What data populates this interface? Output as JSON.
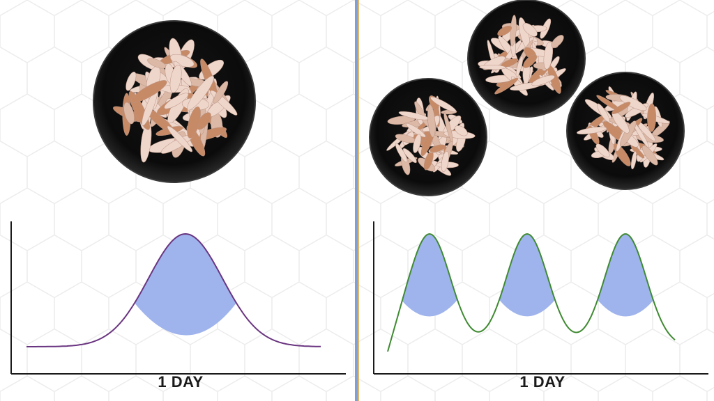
{
  "colors": {
    "background": "#ffffff",
    "hex_pattern": "#ececec",
    "divider": "#6a8fcf",
    "plate": "#0c0c0c",
    "plate_rim": "#3a3a3a",
    "meat_light": "#efd6cb",
    "meat_mid": "#dcb8a6",
    "meat_dark": "#c78a66",
    "fill": "#9fb4ec",
    "curve_left": "#6a3580",
    "curve_right": "#3f8a32",
    "axis": "#1a1a1a"
  },
  "icons": {
    "plate": "plate-with-shredded-chicken-icon"
  },
  "panels": {
    "left": {
      "label": "1 DAY",
      "plates": 1,
      "peaks": 1
    },
    "right": {
      "label": "1 DAY",
      "plates": 3,
      "peaks": 3
    }
  }
}
